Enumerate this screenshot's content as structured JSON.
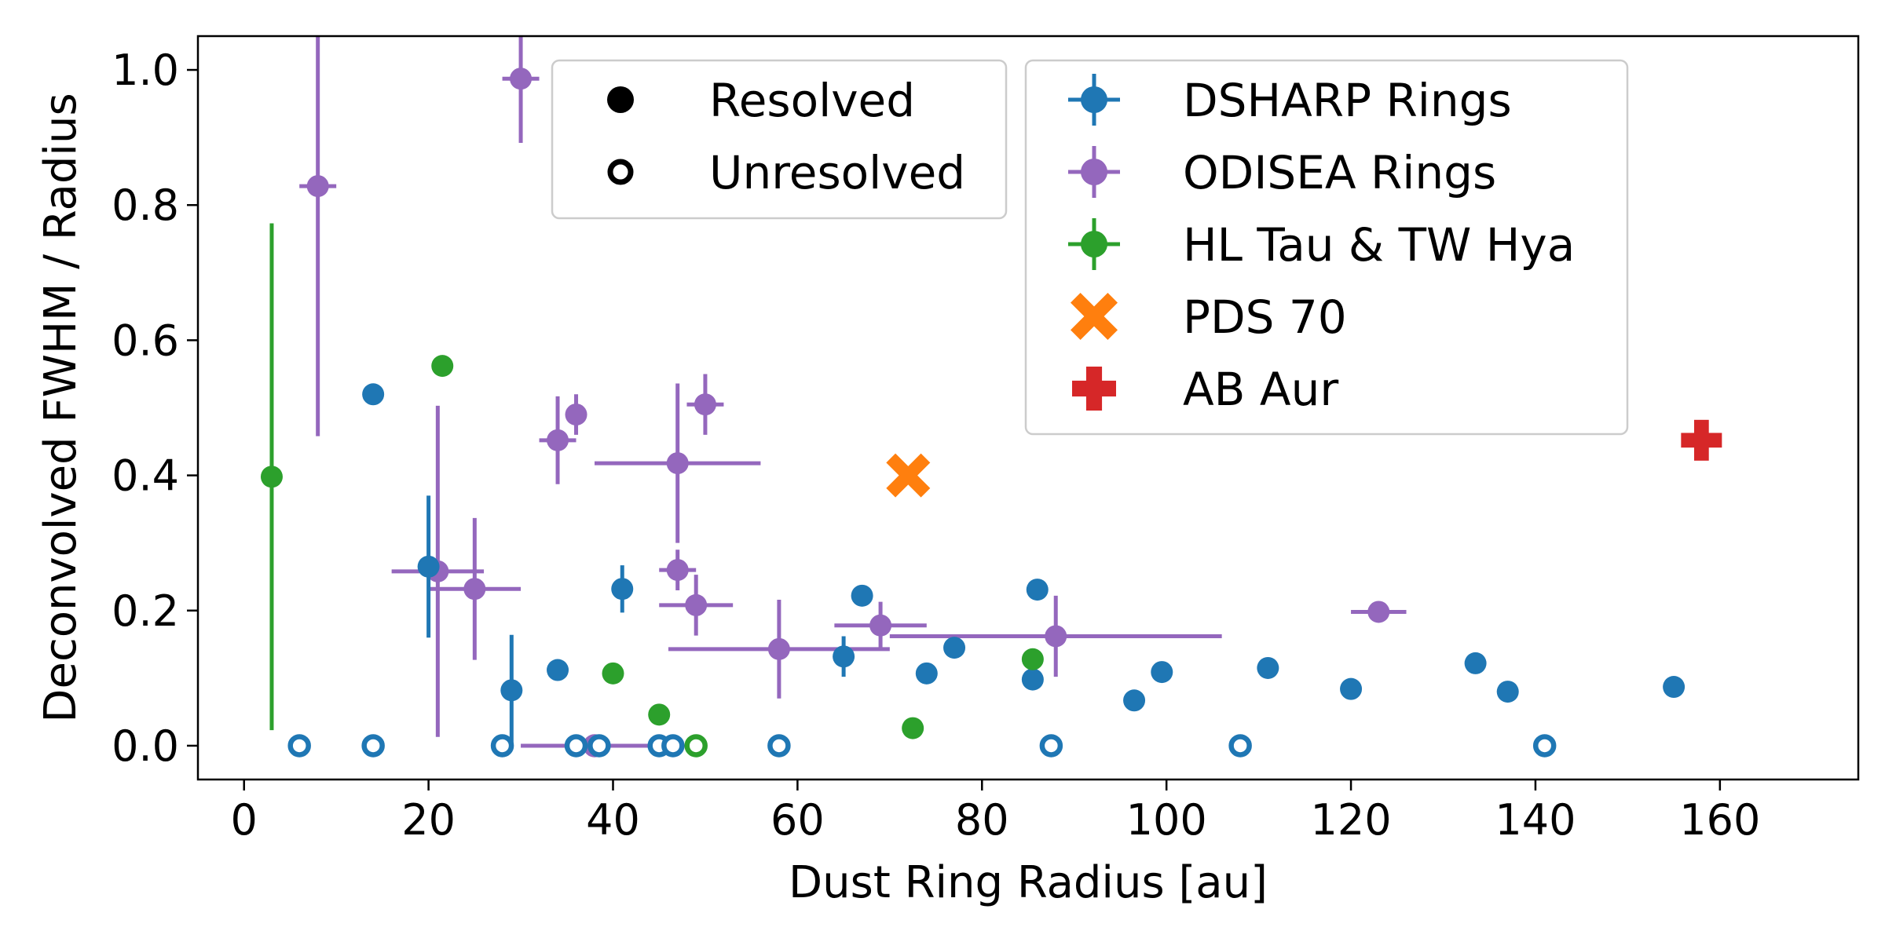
{
  "chart_data": {
    "type": "scatter",
    "title": "",
    "xlabel": "Dust Ring Radius [au]",
    "ylabel": "Deconvolved FWHM / Radius",
    "xlim": [
      -5,
      175
    ],
    "ylim": [
      -0.05,
      1.05
    ],
    "xticks": [
      0,
      20,
      40,
      60,
      80,
      100,
      120,
      140,
      160
    ],
    "yticks": [
      0.0,
      0.2,
      0.4,
      0.6,
      0.8,
      1.0
    ],
    "xtick_labels": [
      "0",
      "20",
      "40",
      "60",
      "80",
      "100",
      "120",
      "140",
      "160"
    ],
    "ytick_labels": [
      "0.0",
      "0.2",
      "0.4",
      "0.6",
      "0.8",
      "1.0"
    ],
    "grid": false,
    "marker_legend": {
      "placement": "top-center",
      "entries": [
        {
          "label": "Resolved",
          "style": "filled"
        },
        {
          "label": "Unresolved",
          "style": "open"
        }
      ]
    },
    "series_legend": {
      "placement": "top-right",
      "entries": [
        {
          "label": "DSHARP Rings",
          "series": "dsharp"
        },
        {
          "label": "ODISEA Rings",
          "series": "odisea"
        },
        {
          "label": "HL Tau & TW Hya",
          "series": "hltau_twhya"
        },
        {
          "label": "PDS 70",
          "series": "pds70"
        },
        {
          "label": "AB Aur",
          "series": "abaur"
        }
      ]
    },
    "series": [
      {
        "id": "dsharp",
        "name": "DSHARP Rings",
        "color": "#1f77b4",
        "marker": "circle",
        "resolved": [
          {
            "x": 14,
            "y": 0.52,
            "yerr": 0.015
          },
          {
            "x": 20,
            "y": 0.265,
            "yerr": 0.105
          },
          {
            "x": 29,
            "y": 0.082,
            "yerr": 0.082
          },
          {
            "x": 34,
            "y": 0.112
          },
          {
            "x": 41,
            "y": 0.232,
            "yerr": 0.035
          },
          {
            "x": 65,
            "y": 0.132,
            "yerr": 0.03
          },
          {
            "x": 67,
            "y": 0.222
          },
          {
            "x": 74,
            "y": 0.107
          },
          {
            "x": 77,
            "y": 0.145
          },
          {
            "x": 85.5,
            "y": 0.098
          },
          {
            "x": 86,
            "y": 0.231
          },
          {
            "x": 96.5,
            "y": 0.067
          },
          {
            "x": 99.5,
            "y": 0.109
          },
          {
            "x": 111,
            "y": 0.115
          },
          {
            "x": 120,
            "y": 0.084
          },
          {
            "x": 133.5,
            "y": 0.122
          },
          {
            "x": 137,
            "y": 0.08
          },
          {
            "x": 155,
            "y": 0.087
          }
        ],
        "unresolved": [
          6,
          14,
          28,
          36,
          38.5,
          45,
          46.5,
          58,
          87.5,
          108,
          141
        ]
      },
      {
        "id": "odisea",
        "name": "ODISEA Rings",
        "color": "#9467bd",
        "marker": "circle",
        "resolved": [
          {
            "x": 8,
            "y": 0.828,
            "xerr": 2,
            "yerr": 0.37
          },
          {
            "x": 30,
            "y": 0.987,
            "xerr": 2,
            "yerr": 0.095
          },
          {
            "x": 34,
            "y": 0.452,
            "xerr": 2,
            "yerr": 0.065
          },
          {
            "x": 36,
            "y": 0.49,
            "xerr": 1,
            "yerr": 0.03
          },
          {
            "x": 21,
            "y": 0.258,
            "xerr": 5,
            "yerr": 0.245
          },
          {
            "x": 25,
            "y": 0.232,
            "xerr": 5,
            "yerr": 0.105
          },
          {
            "x": 47,
            "y": 0.418,
            "xerr": 9,
            "yerr": 0.118
          },
          {
            "x": 47,
            "y": 0.26,
            "xerr": 2,
            "yerr": 0.03
          },
          {
            "x": 49,
            "y": 0.208,
            "xerr": 4,
            "yerr": 0.045
          },
          {
            "x": 50,
            "y": 0.505,
            "xerr": 2,
            "yerr": 0.045
          },
          {
            "x": 58,
            "y": 0.143,
            "xerr": 12,
            "yerr": 0.073
          },
          {
            "x": 69,
            "y": 0.178,
            "xerr": 5,
            "yerr": 0.035
          },
          {
            "x": 88,
            "y": 0.162,
            "xerr": 18,
            "yerr": 0.06
          },
          {
            "x": 123,
            "y": 0.198,
            "xerr": 3
          }
        ],
        "unresolved": [
          {
            "x": 38,
            "xerr": 8
          }
        ]
      },
      {
        "id": "hltau_twhya",
        "name": "HL Tau & TW Hya",
        "color": "#2ca02c",
        "marker": "circle",
        "resolved": [
          {
            "x": 3,
            "y": 0.398,
            "yerr": 0.375
          },
          {
            "x": 21.5,
            "y": 0.562
          },
          {
            "x": 40,
            "y": 0.107
          },
          {
            "x": 45,
            "y": 0.046
          },
          {
            "x": 72.5,
            "y": 0.026
          },
          {
            "x": 85.5,
            "y": 0.128
          }
        ],
        "unresolved": [
          49
        ]
      },
      {
        "id": "pds70",
        "name": "PDS 70",
        "color": "#ff7f0e",
        "marker": "x-filled",
        "resolved": [
          {
            "x": 72,
            "y": 0.4
          }
        ]
      },
      {
        "id": "abaur",
        "name": "AB Aur",
        "color": "#d62728",
        "marker": "plus-filled",
        "resolved": [
          {
            "x": 158,
            "y": 0.452
          }
        ]
      }
    ]
  }
}
